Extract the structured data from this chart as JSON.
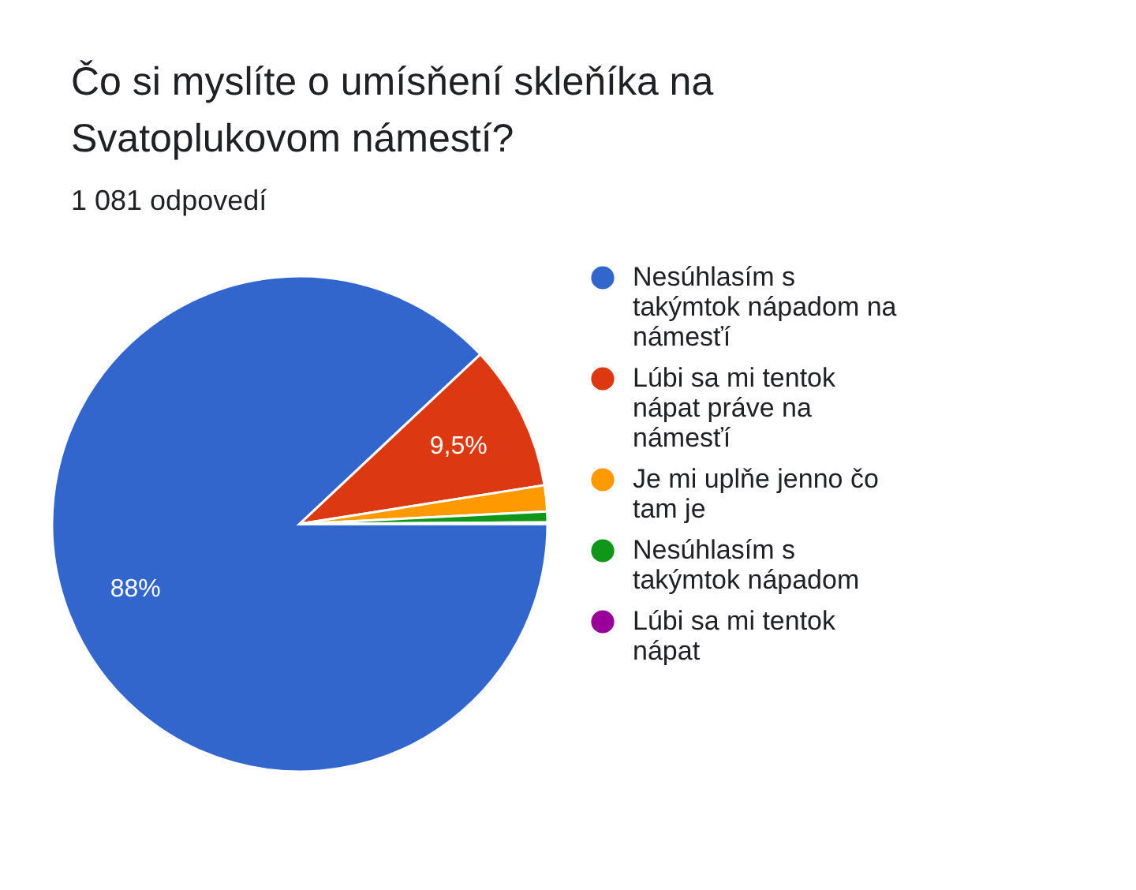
{
  "chart_data": {
    "type": "pie",
    "title": "Čo si myslíte o umísňení skleňíka na Svatoplukovom námestí?",
    "subtitle": "1 081 odpovedí",
    "categories": [
      "Nesúhlasím s takýmtok nápadom na námesťí",
      "Lúbi sa mi tentok nápat práve na námesťí",
      "Je mi uplňe jenno čo tam je",
      "Nesúhlasím s takýmtok nápadom",
      "Lúbi sa mi tentok nápat"
    ],
    "values": [
      88,
      9.5,
      1.7,
      0.7,
      0.1
    ],
    "colors": [
      "#3366cc",
      "#dc3912",
      "#ff9900",
      "#109618",
      "#990099"
    ],
    "value_labels": [
      "88%",
      "9,5%",
      null,
      null,
      null
    ],
    "legend": "right"
  }
}
